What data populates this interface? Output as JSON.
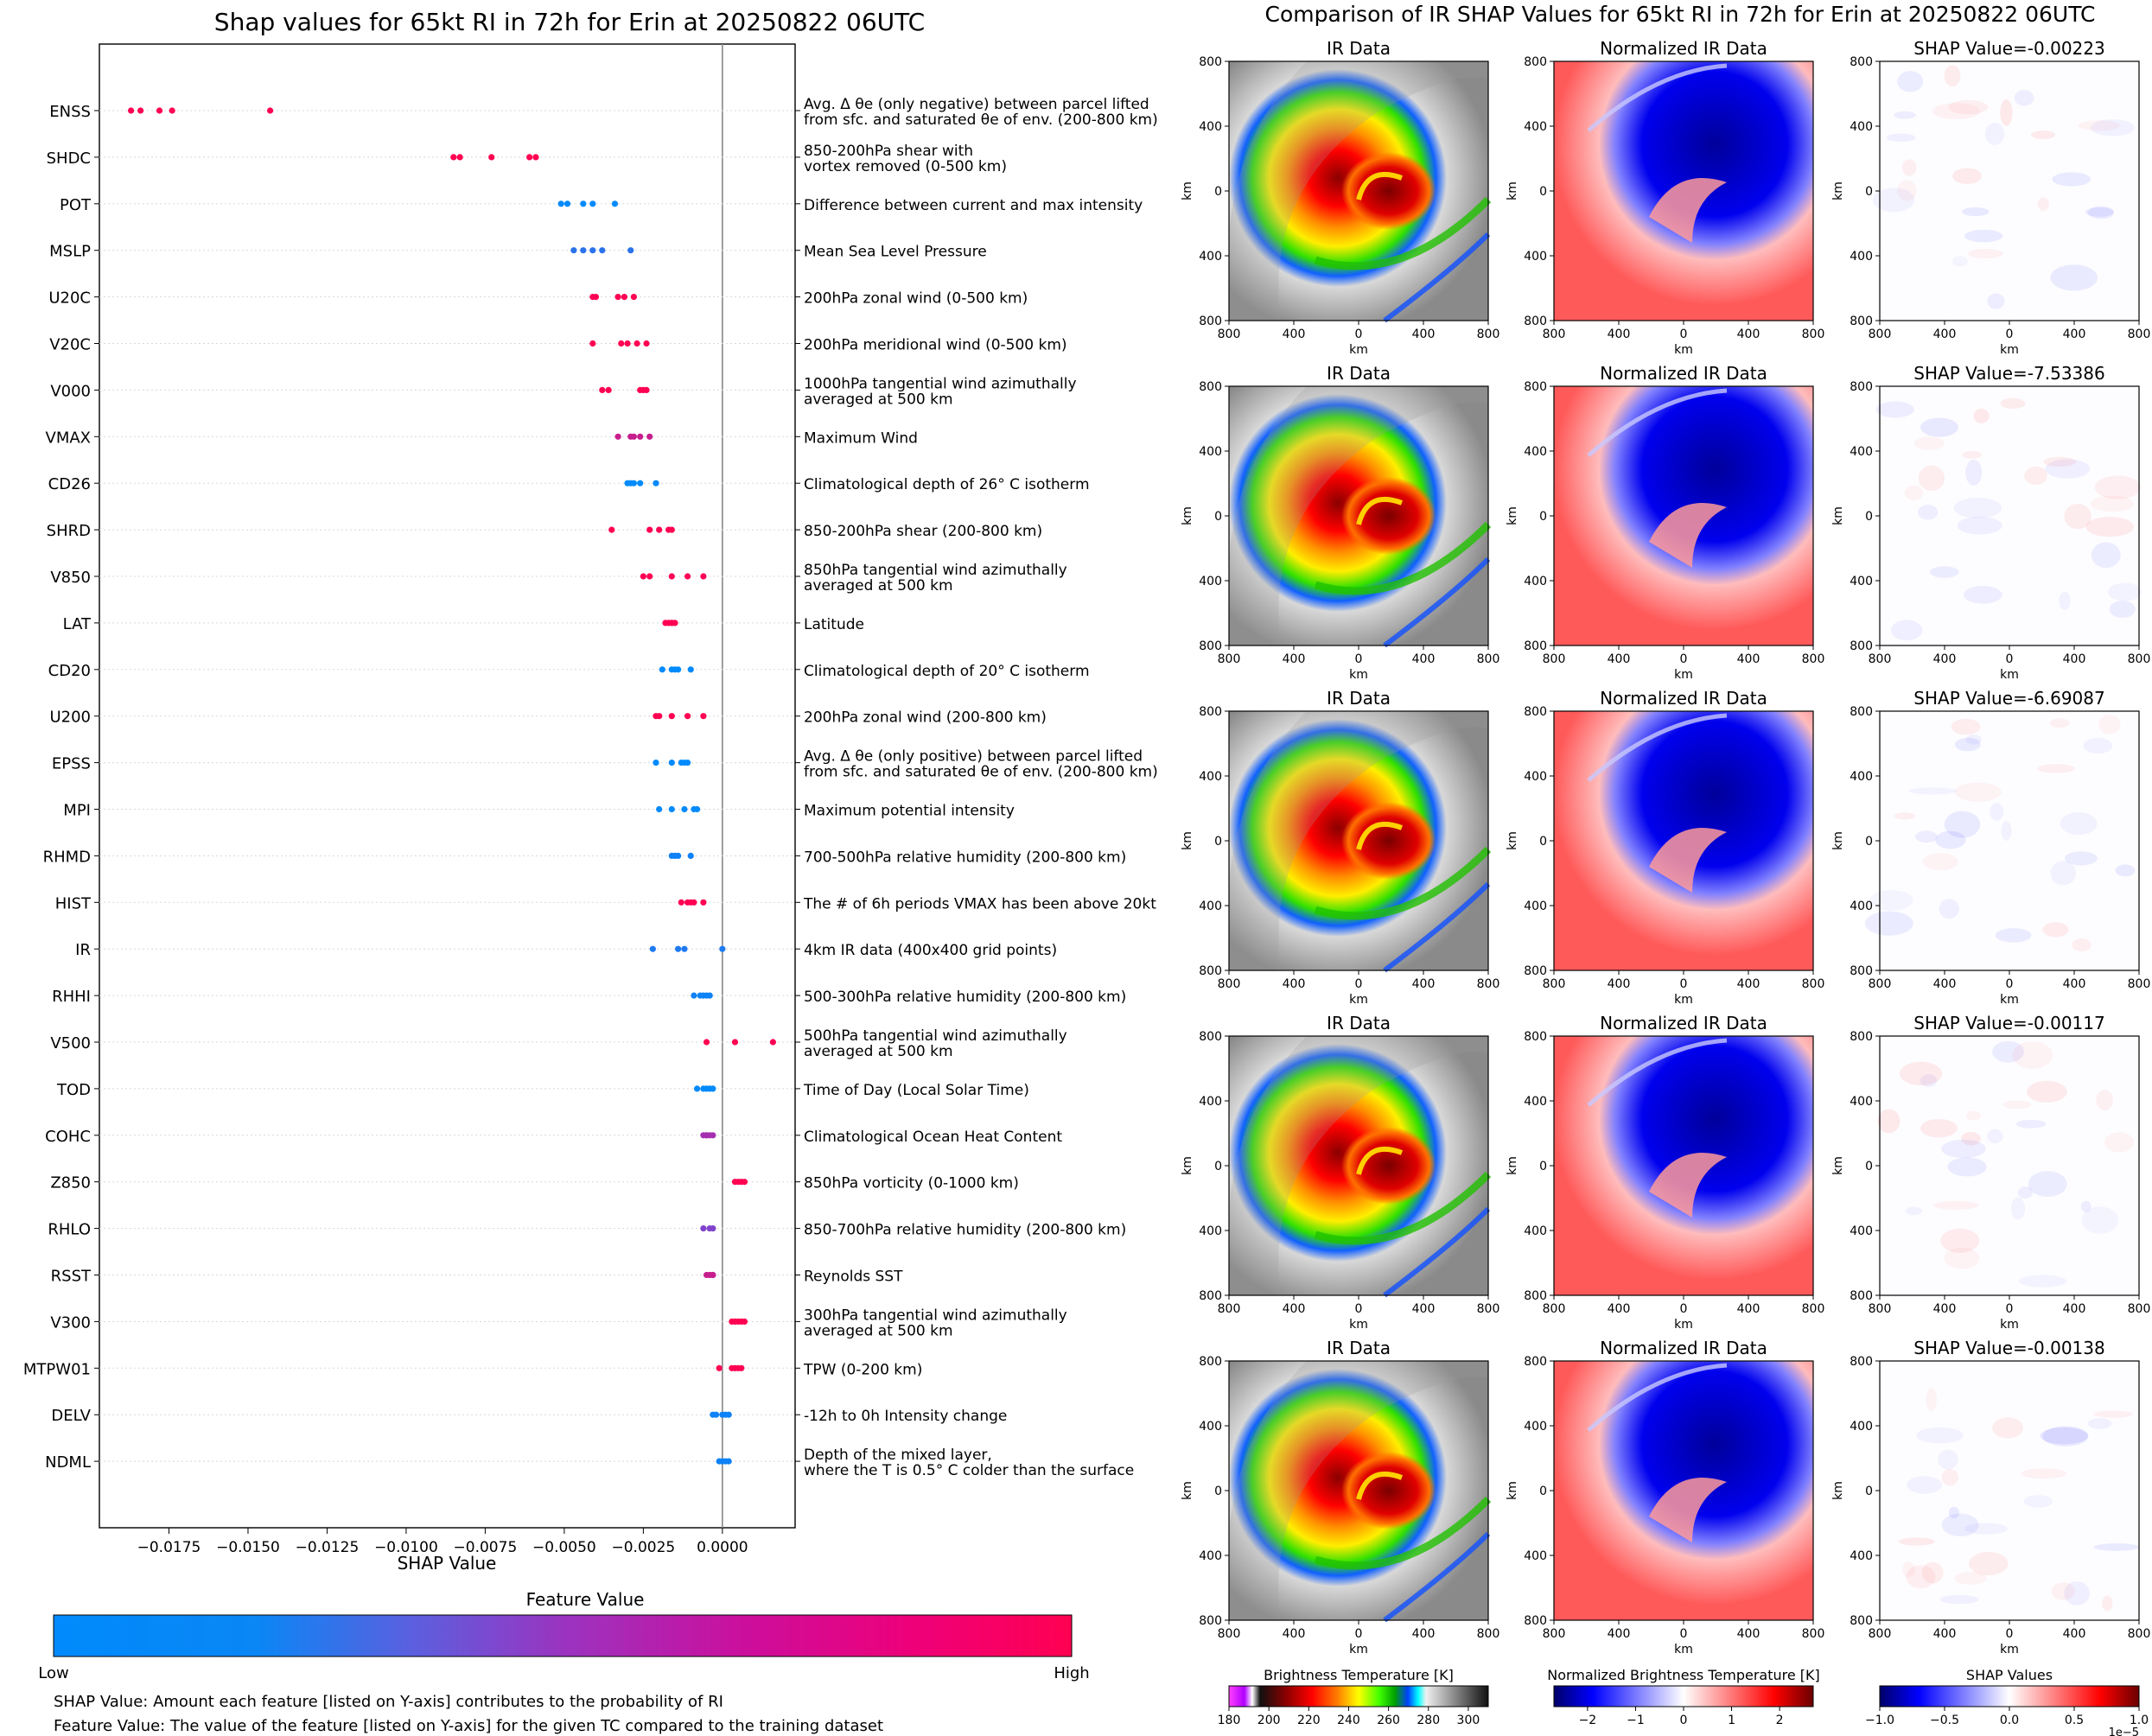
{
  "chart_data": [
    {
      "type": "scatter",
      "title": "Shap values for 65kt RI in 72h for Erin at 20250822 06UTC",
      "xlabel": "SHAP Value",
      "xlim": [
        -0.0197,
        0.0023
      ],
      "xticks": [
        -0.0175,
        -0.015,
        -0.0125,
        -0.01,
        -0.0075,
        -0.005,
        -0.0025,
        0.0
      ],
      "xtick_labels": [
        "−0.0175",
        "−0.0150",
        "−0.0125",
        "−0.0100",
        "−0.0075",
        "−0.0050",
        "−0.0025",
        "0.0000"
      ],
      "zero_line": 0.0,
      "color_low": "#008afb",
      "color_mid": "#8f3bc7",
      "color_high": "#ff0052",
      "features": [
        {
          "name": "ENSS",
          "desc": [
            "Avg. Δ θe (only negative) between parcel lifted",
            "from sfc. and saturated θe of env. (200-800 km)"
          ],
          "points": [
            [
              -0.0187,
              1.0
            ],
            [
              -0.0184,
              1.0
            ],
            [
              -0.0178,
              1.0
            ],
            [
              -0.0174,
              1.0
            ],
            [
              -0.0143,
              1.0
            ]
          ]
        },
        {
          "name": "SHDC",
          "desc": [
            "850-200hPa shear with",
            "vortex removed (0-500 km)"
          ],
          "points": [
            [
              -0.0085,
              1.0
            ],
            [
              -0.0083,
              1.0
            ],
            [
              -0.0073,
              1.0
            ],
            [
              -0.0061,
              1.0
            ],
            [
              -0.0059,
              1.0
            ]
          ]
        },
        {
          "name": "POT",
          "desc": [
            "Difference between current and max intensity"
          ],
          "points": [
            [
              -0.0051,
              0.0
            ],
            [
              -0.0049,
              0.0
            ],
            [
              -0.0044,
              0.0
            ],
            [
              -0.0041,
              0.0
            ],
            [
              -0.0034,
              0.0
            ]
          ]
        },
        {
          "name": "MSLP",
          "desc": [
            "Mean Sea Level Pressure"
          ],
          "points": [
            [
              -0.0047,
              0.15
            ],
            [
              -0.0044,
              0.15
            ],
            [
              -0.0041,
              0.15
            ],
            [
              -0.0038,
              0.15
            ],
            [
              -0.0029,
              0.15
            ]
          ]
        },
        {
          "name": "U20C",
          "desc": [
            "200hPa zonal wind (0-500 km)"
          ],
          "points": [
            [
              -0.0041,
              1.0
            ],
            [
              -0.004,
              1.0
            ],
            [
              -0.0033,
              1.0
            ],
            [
              -0.0031,
              1.0
            ],
            [
              -0.0028,
              1.0
            ]
          ]
        },
        {
          "name": "V20C",
          "desc": [
            "200hPa meridional wind (0-500 km)"
          ],
          "points": [
            [
              -0.0041,
              1.0
            ],
            [
              -0.0032,
              1.0
            ],
            [
              -0.003,
              1.0
            ],
            [
              -0.0027,
              1.0
            ],
            [
              -0.0024,
              1.0
            ]
          ]
        },
        {
          "name": "V000",
          "desc": [
            "1000hPa tangential wind azimuthally",
            "averaged at 500 km"
          ],
          "points": [
            [
              -0.0038,
              1.0
            ],
            [
              -0.0036,
              1.0
            ],
            [
              -0.0026,
              1.0
            ],
            [
              -0.0025,
              1.0
            ],
            [
              -0.0024,
              1.0
            ]
          ]
        },
        {
          "name": "VMAX",
          "desc": [
            "Maximum Wind"
          ],
          "points": [
            [
              -0.0033,
              0.75
            ],
            [
              -0.0029,
              0.75
            ],
            [
              -0.0028,
              0.75
            ],
            [
              -0.0026,
              0.75
            ],
            [
              -0.0023,
              0.75
            ]
          ]
        },
        {
          "name": "CD26",
          "desc": [
            "Climatological depth of 26° C isotherm"
          ],
          "points": [
            [
              -0.003,
              0.0
            ],
            [
              -0.0029,
              0.0
            ],
            [
              -0.0028,
              0.0
            ],
            [
              -0.0026,
              0.0
            ],
            [
              -0.0021,
              0.0
            ]
          ]
        },
        {
          "name": "SHRD",
          "desc": [
            "850-200hPa shear (200-800 km)"
          ],
          "points": [
            [
              -0.0035,
              1.0
            ],
            [
              -0.0023,
              1.0
            ],
            [
              -0.002,
              1.0
            ],
            [
              -0.0017,
              1.0
            ],
            [
              -0.0016,
              1.0
            ]
          ]
        },
        {
          "name": "V850",
          "desc": [
            "850hPa tangential wind azimuthally",
            "averaged at 500 km"
          ],
          "points": [
            [
              -0.0025,
              1.0
            ],
            [
              -0.0023,
              1.0
            ],
            [
              -0.0016,
              1.0
            ],
            [
              -0.0011,
              1.0
            ],
            [
              -0.0006,
              1.0
            ]
          ]
        },
        {
          "name": "LAT",
          "desc": [
            "Latitude"
          ],
          "points": [
            [
              -0.0018,
              1.0
            ],
            [
              -0.0017,
              1.0
            ],
            [
              -0.0016,
              1.0
            ],
            [
              -0.0016,
              1.0
            ],
            [
              -0.0015,
              1.0
            ]
          ]
        },
        {
          "name": "CD20",
          "desc": [
            "Climatological depth of 20° C isotherm"
          ],
          "points": [
            [
              -0.0019,
              0.0
            ],
            [
              -0.0016,
              0.0
            ],
            [
              -0.0015,
              0.0
            ],
            [
              -0.0014,
              0.0
            ],
            [
              -0.001,
              0.0
            ]
          ]
        },
        {
          "name": "U200",
          "desc": [
            "200hPa zonal wind (200-800 km)"
          ],
          "points": [
            [
              -0.0021,
              1.0
            ],
            [
              -0.002,
              1.0
            ],
            [
              -0.0016,
              1.0
            ],
            [
              -0.0011,
              1.0
            ],
            [
              -0.0006,
              1.0
            ]
          ]
        },
        {
          "name": "EPSS",
          "desc": [
            "Avg. Δ θe (only positive) between parcel lifted",
            "from sfc. and saturated θe of env. (200-800 km)"
          ],
          "points": [
            [
              -0.0021,
              0.0
            ],
            [
              -0.0016,
              0.0
            ],
            [
              -0.0013,
              0.0
            ],
            [
              -0.0012,
              0.0
            ],
            [
              -0.0011,
              0.0
            ]
          ]
        },
        {
          "name": "MPI",
          "desc": [
            "Maximum potential intensity"
          ],
          "points": [
            [
              -0.002,
              0.0
            ],
            [
              -0.0016,
              0.0
            ],
            [
              -0.0012,
              0.0
            ],
            [
              -0.0009,
              0.0
            ],
            [
              -0.0008,
              0.0
            ]
          ]
        },
        {
          "name": "RHMD",
          "desc": [
            "700-500hPa relative humidity (200-800 km)"
          ],
          "points": [
            [
              -0.0016,
              0.05
            ],
            [
              -0.0015,
              0.05
            ],
            [
              -0.0014,
              0.05
            ],
            [
              -0.001,
              0.05
            ]
          ]
        },
        {
          "name": "HIST",
          "desc": [
            "The # of 6h periods VMAX has been above 20kt"
          ],
          "points": [
            [
              -0.0013,
              1.0
            ],
            [
              -0.0011,
              1.0
            ],
            [
              -0.001,
              1.0
            ],
            [
              -0.0009,
              1.0
            ],
            [
              -0.0006,
              1.0
            ]
          ]
        },
        {
          "name": "IR",
          "desc": [
            "4km IR data (400x400 grid points)"
          ],
          "points": [
            [
              -0.0022,
              0.1
            ],
            [
              -0.0014,
              0.1
            ],
            [
              -0.0012,
              0.1
            ],
            [
              0.0,
              0.1
            ]
          ]
        },
        {
          "name": "RHHI",
          "desc": [
            "500-300hPa relative humidity (200-800 km)"
          ],
          "points": [
            [
              -0.0009,
              0.05
            ],
            [
              -0.0007,
              0.05
            ],
            [
              -0.0006,
              0.05
            ],
            [
              -0.0005,
              0.05
            ],
            [
              -0.0004,
              0.05
            ]
          ]
        },
        {
          "name": "V500",
          "desc": [
            "500hPa tangential wind azimuthally",
            "averaged at 500 km"
          ],
          "points": [
            [
              -0.0005,
              1.0
            ],
            [
              0.0004,
              1.0
            ],
            [
              0.0016,
              1.0
            ]
          ]
        },
        {
          "name": "TOD",
          "desc": [
            "Time of Day (Local Solar Time)"
          ],
          "points": [
            [
              -0.0008,
              0.0
            ],
            [
              -0.0006,
              0.0
            ],
            [
              -0.0005,
              0.0
            ],
            [
              -0.0004,
              0.0
            ],
            [
              -0.0003,
              0.0
            ]
          ]
        },
        {
          "name": "COHC",
          "desc": [
            "Climatological Ocean Heat Content"
          ],
          "points": [
            [
              -0.0006,
              0.6
            ],
            [
              -0.0005,
              0.6
            ],
            [
              -0.0005,
              0.6
            ],
            [
              -0.0004,
              0.6
            ],
            [
              -0.0003,
              0.6
            ]
          ]
        },
        {
          "name": "Z850",
          "desc": [
            "850hPa vorticity (0-1000 km)"
          ],
          "points": [
            [
              0.0004,
              1.0
            ],
            [
              0.0005,
              1.0
            ],
            [
              0.0006,
              1.0
            ],
            [
              0.0007,
              1.0
            ]
          ]
        },
        {
          "name": "RHLO",
          "desc": [
            "850-700hPa relative humidity (200-800 km)"
          ],
          "points": [
            [
              -0.0006,
              0.45
            ],
            [
              -0.0004,
              0.45
            ],
            [
              -0.0003,
              0.45
            ]
          ]
        },
        {
          "name": "RSST",
          "desc": [
            "Reynolds SST"
          ],
          "points": [
            [
              -0.0005,
              0.75
            ],
            [
              -0.0004,
              0.75
            ],
            [
              -0.0004,
              0.75
            ],
            [
              -0.0003,
              0.75
            ],
            [
              -0.0003,
              0.75
            ]
          ]
        },
        {
          "name": "V300",
          "desc": [
            "300hPa tangential wind azimuthally",
            "averaged at 500 km"
          ],
          "points": [
            [
              0.0003,
              1.0
            ],
            [
              0.0004,
              1.0
            ],
            [
              0.0005,
              1.0
            ],
            [
              0.0006,
              1.0
            ],
            [
              0.0007,
              1.0
            ]
          ]
        },
        {
          "name": "MTPW01",
          "desc": [
            "TPW (0-200 km)"
          ],
          "points": [
            [
              -0.0001,
              1.0
            ],
            [
              0.0003,
              1.0
            ],
            [
              0.0004,
              1.0
            ],
            [
              0.0005,
              1.0
            ],
            [
              0.0006,
              1.0
            ]
          ]
        },
        {
          "name": "DELV",
          "desc": [
            "-12h to 0h Intensity change"
          ],
          "points": [
            [
              -0.0003,
              0.05
            ],
            [
              -0.0002,
              0.05
            ],
            [
              0.0,
              0.05
            ],
            [
              0.0001,
              0.05
            ],
            [
              0.0002,
              0.05
            ]
          ]
        },
        {
          "name": "NDML",
          "desc": [
            "Depth of the mixed layer,",
            "where the T is 0.5° C colder than the surface"
          ],
          "points": [
            [
              -0.0001,
              0.05
            ],
            [
              0.0,
              0.05
            ],
            [
              0.0,
              0.05
            ],
            [
              0.0001,
              0.05
            ],
            [
              0.0002,
              0.05
            ]
          ]
        }
      ],
      "colorbar": {
        "title": "Feature Value",
        "low": "Low",
        "high": "High"
      },
      "notes": [
        "SHAP Value: Amount each feature [listed on Y-axis] contributes to the probability of RI",
        "Feature Value: The value of the feature [listed on Y-axis] for the given TC compared to the training dataset"
      ]
    },
    {
      "type": "heatmap",
      "title": "Comparison of IR SHAP Values for 65kt RI in 72h for Erin at 20250822 06UTC",
      "column_titles": [
        "IR Data",
        "Normalized IR Data"
      ],
      "row_shap_titles": [
        "SHAP Value=-0.00223",
        "SHAP Value=-7.53386",
        "SHAP Value=-6.69087",
        "SHAP Value=-0.00117",
        "SHAP Value=-0.00138"
      ],
      "axis_label": "km",
      "axis_ticks": [
        "800",
        "400",
        "0",
        "400",
        "800"
      ],
      "colorbars": [
        {
          "title": "Brightness Temperature [K]",
          "ticks": [
            "180",
            "200",
            "220",
            "240",
            "260",
            "280",
            "300"
          ],
          "min": 180,
          "max": 310
        },
        {
          "title": "Normalized Brightness Temperature [K]",
          "ticks": [
            "−2",
            "−1",
            "0",
            "1",
            "2"
          ],
          "min": -2.7,
          "max": 2.7
        },
        {
          "title": "SHAP Values",
          "ticks": [
            "−1.0",
            "−0.5",
            "0.0",
            "0.5",
            "1.0"
          ],
          "min": -1.0,
          "max": 1.0,
          "exponent": "1e−5"
        }
      ]
    }
  ]
}
